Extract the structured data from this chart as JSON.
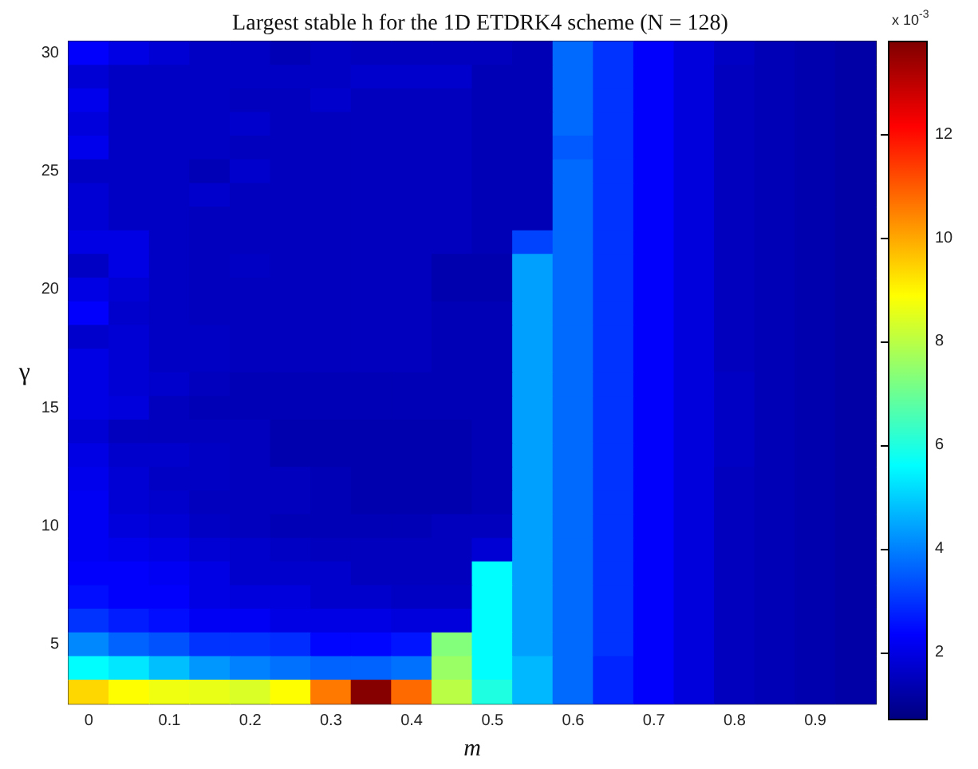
{
  "chart_data": {
    "type": "heatmap",
    "title": "Largest stable h for the 1D ETDRK4 scheme (N = 128)",
    "xlabel": "m",
    "ylabel": "γ",
    "clabel": "x 10$^{-3}$",
    "categories": [
      "0",
      null,
      "0.1",
      null,
      "0.2",
      null,
      "0.3",
      null,
      "0.4",
      null,
      "0.5",
      null,
      "0.6",
      null,
      "0.7",
      null,
      "0.8",
      null,
      "0.9",
      null
    ],
    "y_categories": [
      "30",
      null,
      null,
      null,
      null,
      "25",
      null,
      null,
      null,
      null,
      "20",
      null,
      null,
      null,
      null,
      "15",
      null,
      null,
      null,
      null,
      "10",
      null,
      null,
      null,
      null,
      "5",
      null,
      null
    ],
    "cells": [
      [
        2.3,
        2.0,
        1.8,
        1.6,
        1.6,
        1.4,
        1.6,
        1.5,
        1.5,
        1.5,
        1.5,
        1.4,
        3.7,
        3.0,
        2.3,
        1.9,
        1.6,
        1.4,
        1.3,
        1.2
      ],
      [
        1.8,
        1.6,
        1.6,
        1.6,
        1.6,
        1.6,
        1.6,
        1.7,
        1.7,
        1.7,
        1.4,
        1.4,
        3.7,
        3.0,
        2.3,
        1.9,
        1.5,
        1.4,
        1.3,
        1.2
      ],
      [
        2.1,
        1.6,
        1.6,
        1.6,
        1.5,
        1.5,
        1.7,
        1.5,
        1.5,
        1.5,
        1.4,
        1.4,
        3.7,
        3.0,
        2.3,
        1.9,
        1.5,
        1.4,
        1.3,
        1.2
      ],
      [
        1.9,
        1.6,
        1.6,
        1.6,
        1.7,
        1.5,
        1.5,
        1.5,
        1.5,
        1.5,
        1.4,
        1.4,
        3.7,
        3.0,
        2.3,
        1.9,
        1.5,
        1.4,
        1.3,
        1.2
      ],
      [
        2.1,
        1.6,
        1.6,
        1.6,
        1.5,
        1.5,
        1.5,
        1.5,
        1.5,
        1.5,
        1.4,
        1.4,
        3.5,
        3.0,
        2.3,
        1.9,
        1.5,
        1.4,
        1.3,
        1.2
      ],
      [
        1.6,
        1.6,
        1.6,
        1.4,
        1.7,
        1.5,
        1.5,
        1.5,
        1.5,
        1.5,
        1.4,
        1.4,
        3.7,
        3.0,
        2.3,
        1.9,
        1.5,
        1.4,
        1.3,
        1.2
      ],
      [
        1.8,
        1.6,
        1.6,
        1.7,
        1.5,
        1.5,
        1.5,
        1.5,
        1.5,
        1.5,
        1.4,
        1.4,
        3.7,
        3.0,
        2.3,
        1.9,
        1.5,
        1.4,
        1.3,
        1.2
      ],
      [
        1.8,
        1.6,
        1.6,
        1.5,
        1.5,
        1.5,
        1.5,
        1.5,
        1.5,
        1.5,
        1.4,
        1.4,
        3.7,
        3.0,
        2.3,
        1.9,
        1.5,
        1.4,
        1.3,
        1.2
      ],
      [
        2.0,
        2.0,
        1.6,
        1.5,
        1.5,
        1.5,
        1.5,
        1.5,
        1.5,
        1.5,
        1.4,
        3.2,
        3.7,
        3.0,
        2.3,
        1.9,
        1.5,
        1.4,
        1.3,
        1.2
      ],
      [
        1.6,
        2.0,
        1.6,
        1.5,
        1.6,
        1.5,
        1.5,
        1.5,
        1.5,
        1.3,
        1.3,
        4.4,
        3.7,
        3.0,
        2.3,
        1.9,
        1.5,
        1.4,
        1.3,
        1.2
      ],
      [
        2.0,
        1.8,
        1.6,
        1.5,
        1.5,
        1.5,
        1.5,
        1.5,
        1.5,
        1.3,
        1.3,
        4.4,
        3.7,
        3.0,
        2.3,
        1.9,
        1.5,
        1.4,
        1.3,
        1.2
      ],
      [
        2.3,
        1.7,
        1.6,
        1.5,
        1.5,
        1.5,
        1.5,
        1.5,
        1.5,
        1.4,
        1.4,
        4.4,
        3.7,
        3.0,
        2.3,
        1.9,
        1.5,
        1.4,
        1.3,
        1.2
      ],
      [
        1.7,
        1.8,
        1.6,
        1.6,
        1.5,
        1.5,
        1.5,
        1.5,
        1.5,
        1.4,
        1.4,
        4.4,
        3.7,
        3.0,
        2.3,
        1.9,
        1.5,
        1.4,
        1.3,
        1.2
      ],
      [
        2.0,
        1.8,
        1.6,
        1.6,
        1.5,
        1.5,
        1.5,
        1.5,
        1.5,
        1.4,
        1.4,
        4.4,
        3.7,
        3.0,
        2.3,
        1.9,
        1.5,
        1.4,
        1.3,
        1.2
      ],
      [
        2.0,
        1.8,
        1.7,
        1.5,
        1.4,
        1.4,
        1.4,
        1.4,
        1.4,
        1.4,
        1.4,
        4.4,
        3.7,
        3.0,
        2.3,
        1.9,
        1.6,
        1.4,
        1.3,
        1.2
      ],
      [
        2.0,
        1.9,
        1.5,
        1.4,
        1.4,
        1.4,
        1.4,
        1.4,
        1.4,
        1.4,
        1.4,
        4.4,
        3.7,
        3.0,
        2.3,
        1.9,
        1.6,
        1.4,
        1.3,
        1.2
      ],
      [
        1.8,
        1.5,
        1.5,
        1.5,
        1.5,
        1.3,
        1.3,
        1.3,
        1.3,
        1.3,
        1.4,
        4.4,
        3.7,
        3.0,
        2.3,
        1.9,
        1.6,
        1.4,
        1.3,
        1.2
      ],
      [
        2.0,
        1.7,
        1.7,
        1.6,
        1.5,
        1.3,
        1.3,
        1.3,
        1.3,
        1.3,
        1.4,
        4.4,
        3.7,
        3.0,
        2.3,
        1.9,
        1.6,
        1.4,
        1.3,
        1.2
      ],
      [
        2.1,
        1.8,
        1.6,
        1.6,
        1.5,
        1.5,
        1.4,
        1.3,
        1.3,
        1.3,
        1.4,
        4.4,
        3.7,
        3.0,
        2.3,
        1.9,
        1.5,
        1.4,
        1.3,
        1.2
      ],
      [
        2.2,
        1.8,
        1.7,
        1.5,
        1.5,
        1.5,
        1.4,
        1.3,
        1.3,
        1.3,
        1.4,
        4.4,
        3.7,
        3.0,
        2.3,
        1.9,
        1.5,
        1.4,
        1.3,
        1.2
      ],
      [
        2.2,
        1.9,
        1.8,
        1.6,
        1.5,
        1.4,
        1.4,
        1.4,
        1.4,
        1.5,
        1.5,
        4.4,
        3.7,
        3.0,
        2.3,
        1.9,
        1.5,
        1.4,
        1.3,
        1.2
      ],
      [
        2.2,
        2.1,
        2.0,
        1.8,
        1.7,
        1.6,
        1.5,
        1.5,
        1.5,
        1.5,
        1.8,
        4.4,
        3.7,
        3.0,
        2.3,
        1.9,
        1.5,
        1.4,
        1.3,
        1.2
      ],
      [
        2.3,
        2.3,
        2.2,
        2.0,
        1.7,
        1.7,
        1.7,
        1.5,
        1.5,
        1.5,
        5.6,
        4.4,
        3.7,
        3.0,
        2.3,
        1.9,
        1.5,
        1.4,
        1.3,
        1.2
      ],
      [
        2.5,
        2.3,
        2.3,
        2.0,
        1.9,
        1.9,
        1.7,
        1.7,
        1.6,
        1.6,
        5.6,
        4.4,
        3.7,
        3.0,
        2.3,
        1.9,
        1.5,
        1.4,
        1.3,
        1.2
      ],
      [
        3.0,
        2.7,
        2.5,
        2.2,
        2.2,
        2.0,
        2.0,
        2.0,
        1.9,
        1.9,
        5.6,
        4.4,
        3.7,
        3.0,
        2.3,
        1.9,
        1.5,
        1.4,
        1.3,
        1.2
      ],
      [
        4.1,
        3.6,
        3.4,
        3.0,
        3.0,
        2.9,
        2.4,
        2.4,
        2.6,
        7.3,
        5.6,
        4.4,
        3.7,
        3.0,
        2.3,
        1.9,
        1.5,
        1.4,
        1.3,
        1.2
      ],
      [
        5.6,
        5.3,
        4.8,
        4.3,
        4.0,
        3.8,
        3.6,
        3.6,
        3.8,
        7.6,
        5.6,
        4.7,
        3.7,
        2.8,
        2.3,
        1.9,
        1.5,
        1.4,
        1.3,
        1.2
      ],
      [
        9.4,
        8.9,
        8.7,
        8.6,
        8.4,
        8.9,
        10.6,
        13.7,
        10.8,
        8.0,
        6.0,
        4.7,
        3.7,
        2.8,
        2.3,
        1.9,
        1.5,
        1.4,
        1.3,
        1.2
      ]
    ],
    "clim": [
      0.7,
      13.8
    ],
    "cticks": [
      2,
      4,
      6,
      8,
      10,
      12
    ]
  }
}
